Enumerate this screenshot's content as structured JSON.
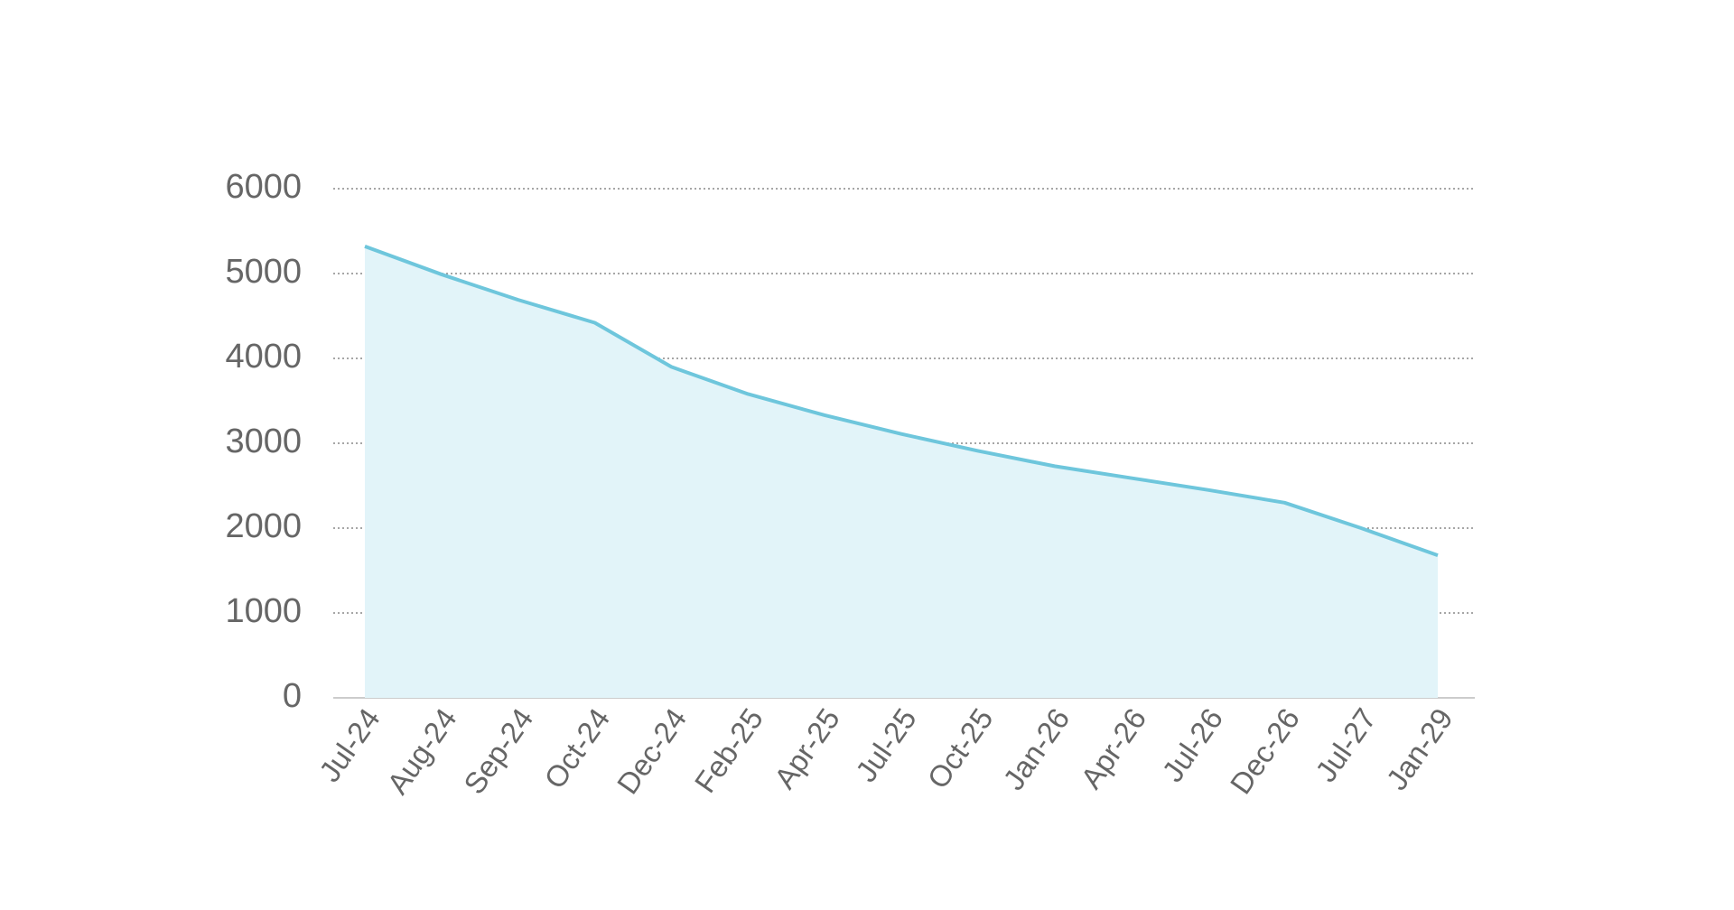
{
  "chart_data": {
    "type": "area",
    "categories": [
      "Jul-24",
      "Aug-24",
      "Sep-24",
      "Oct-24",
      "Dec-24",
      "Feb-25",
      "Apr-25",
      "Jul-25",
      "Oct-25",
      "Jan-26",
      "Apr-26",
      "Jul-26",
      "Dec-26",
      "Jul-27",
      "Jan-29"
    ],
    "values": [
      5320,
      4990,
      4690,
      4420,
      3900,
      3580,
      3330,
      3110,
      2910,
      2730,
      2590,
      2450,
      2300,
      2000,
      1680
    ],
    "color": "#6ec6dc",
    "fill": "#e2f4f9",
    "ylim": [
      0,
      6000
    ],
    "yticks": [
      0,
      1000,
      2000,
      3000,
      4000,
      5000,
      6000
    ],
    "grid": true
  }
}
